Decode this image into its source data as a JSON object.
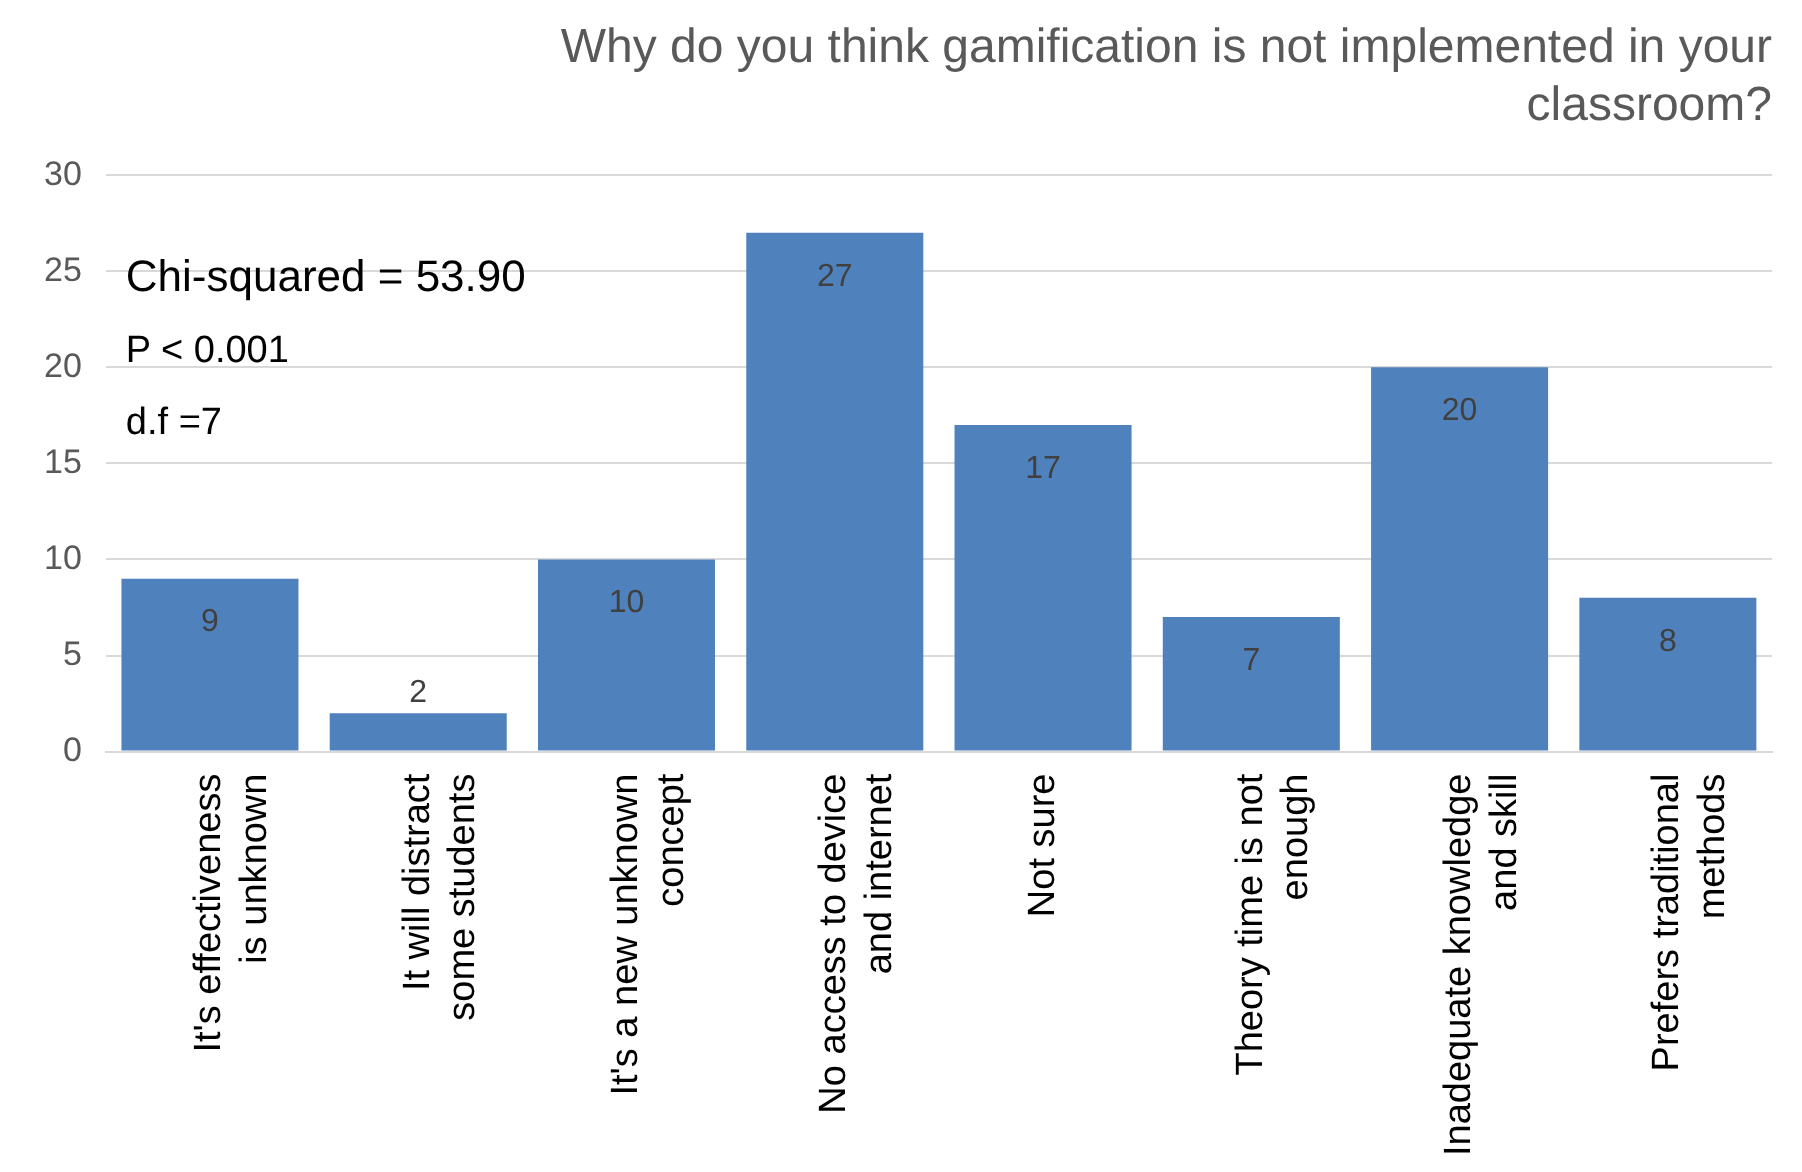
{
  "chart_data": {
    "type": "bar",
    "title": "Why do you think gamification is not implemented in your classroom?",
    "categories": [
      "It's effectiveness is unknown",
      "It will distract some students",
      "It's a new unknown concept",
      "No access to device and internet",
      "Not sure",
      "Theory time is not enough",
      "Inadequate knowledge and skill",
      "Prefers traditional methods"
    ],
    "values": [
      9,
      2,
      10,
      27,
      17,
      7,
      20,
      8
    ],
    "color": "#4f81bd",
    "ylim": [
      0,
      30
    ],
    "yticks": [
      0,
      5,
      10,
      15,
      20,
      25,
      30
    ],
    "grid": "y",
    "data_labels": true,
    "annotations": [
      "Chi-squared = 53.90",
      "P < 0.001",
      "d.f =7"
    ]
  }
}
